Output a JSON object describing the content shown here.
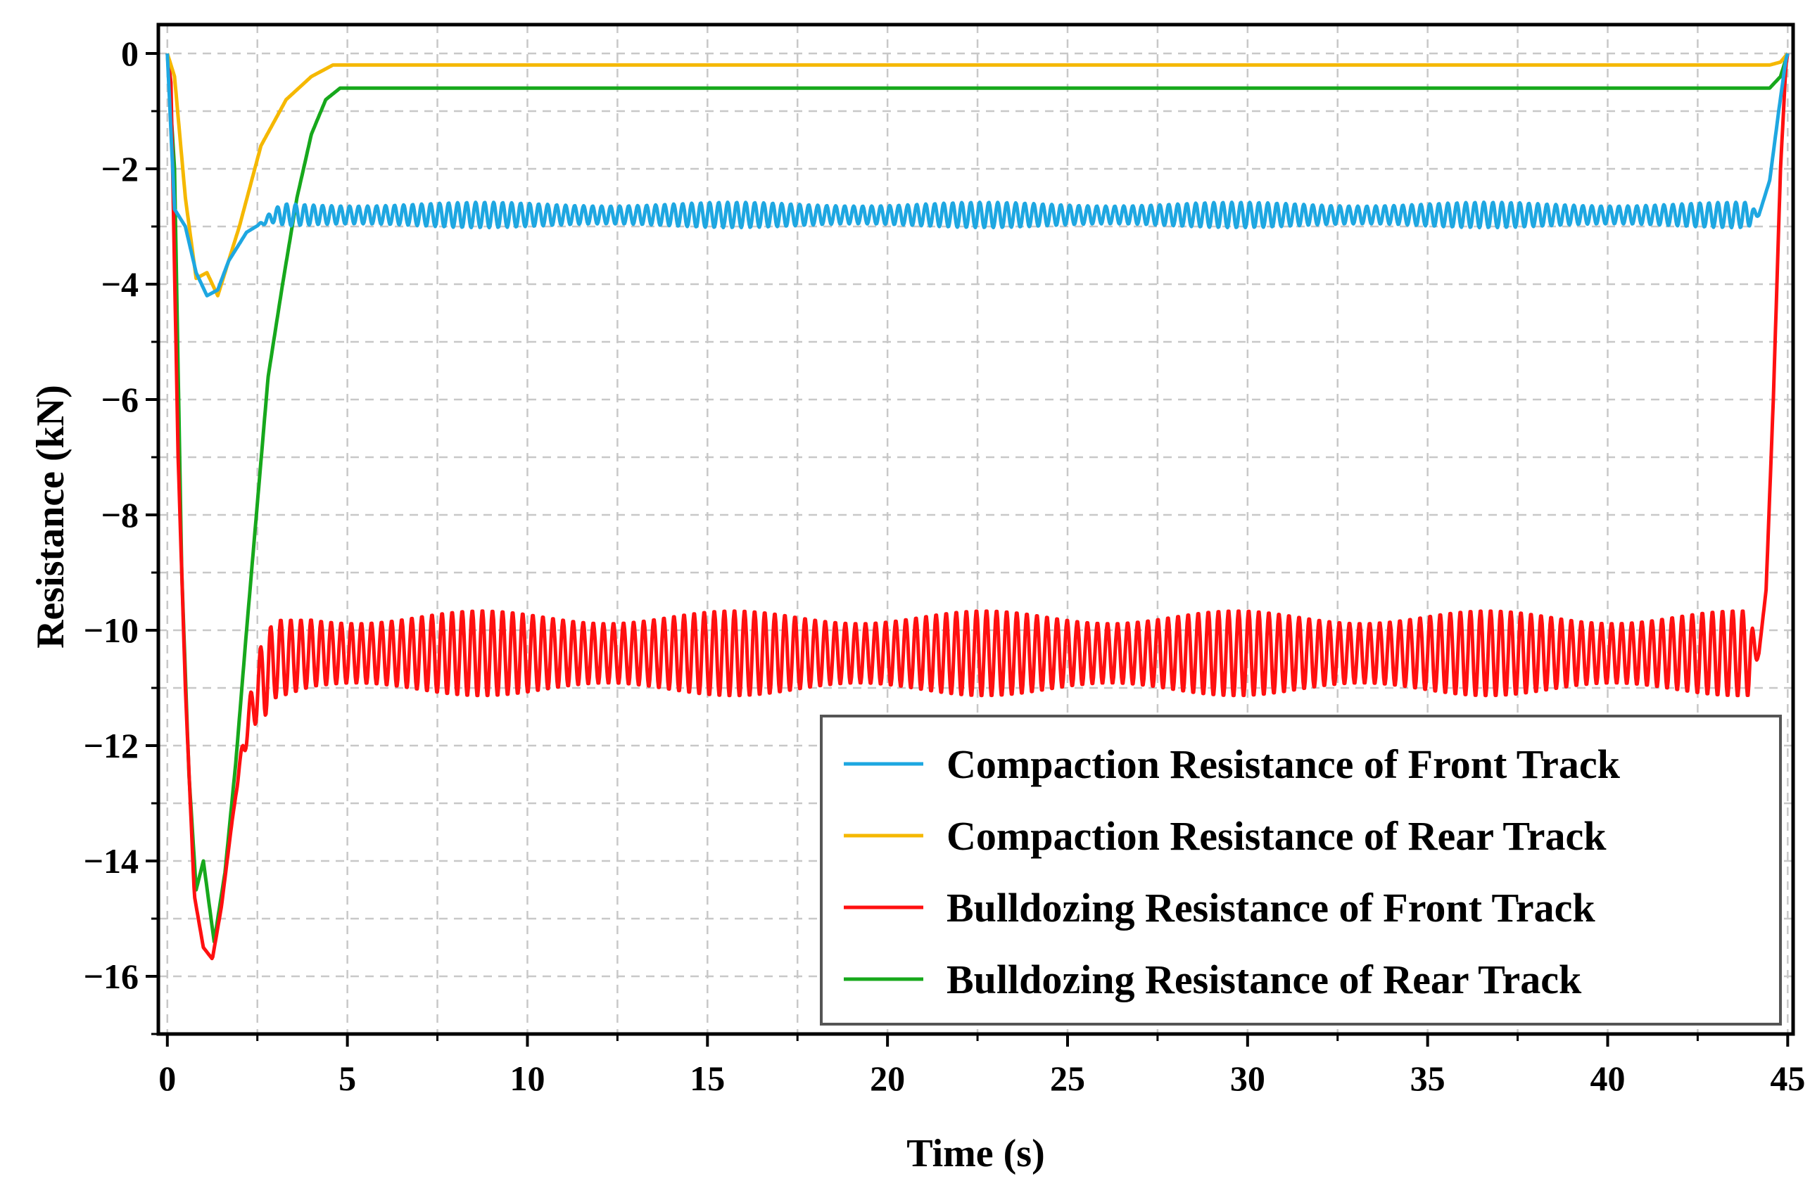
{
  "chart_data": {
    "type": "line",
    "title": "",
    "xlabel": "Time (s)",
    "ylabel": "Resistance (kN)",
    "xlim": [
      -0.25,
      45.15
    ],
    "ylim": [
      -17,
      0.5
    ],
    "xticks": [
      0,
      5,
      10,
      15,
      20,
      25,
      30,
      35,
      40,
      45
    ],
    "xtick_labels": [
      "0",
      "5",
      "10",
      "15",
      "20",
      "25",
      "30",
      "35",
      "40",
      "45"
    ],
    "yticks": [
      0,
      -2,
      -4,
      -6,
      -8,
      -10,
      -12,
      -14,
      -16
    ],
    "ytick_labels": [
      "0",
      "−2",
      "−4",
      "−6",
      "−8",
      "−10",
      "−12",
      "−14",
      "−16"
    ],
    "grid": true,
    "legend_position": "bottom-right",
    "series": [
      {
        "name": "Compaction Resistance of Front Track",
        "color": "#1ea7e1",
        "keypoints": [
          [
            0,
            0
          ],
          [
            0.2,
            -2.7
          ],
          [
            0.5,
            -3.0
          ],
          [
            0.8,
            -3.8
          ],
          [
            1.1,
            -4.2
          ],
          [
            1.4,
            -4.1
          ],
          [
            1.7,
            -3.6
          ],
          [
            2.2,
            -3.1
          ],
          [
            3.0,
            -2.8
          ],
          [
            44.2,
            -2.8
          ],
          [
            44.5,
            -2.2
          ],
          [
            44.75,
            -1.0
          ],
          [
            44.95,
            -0.1
          ],
          [
            45.0,
            0
          ]
        ],
        "osc_start": 2.5,
        "osc_end": 44.2,
        "osc_period": 0.25,
        "osc_amplitude": 0.22
      },
      {
        "name": "Compaction Resistance of Rear Track",
        "color": "#f5b800",
        "keypoints": [
          [
            0,
            0
          ],
          [
            0.2,
            -0.4
          ],
          [
            0.5,
            -2.5
          ],
          [
            0.8,
            -3.9
          ],
          [
            1.1,
            -3.8
          ],
          [
            1.4,
            -4.2
          ],
          [
            2.0,
            -3.0
          ],
          [
            2.6,
            -1.6
          ],
          [
            3.3,
            -0.8
          ],
          [
            4.0,
            -0.4
          ],
          [
            4.6,
            -0.2
          ],
          [
            44.5,
            -0.2
          ],
          [
            44.8,
            -0.15
          ],
          [
            45.0,
            0
          ]
        ]
      },
      {
        "name": "Bulldozing Resistance of Front Track",
        "color": "#ff1010",
        "keypoints": [
          [
            0,
            0
          ],
          [
            0.1,
            -0.5
          ],
          [
            0.3,
            -7.0
          ],
          [
            0.5,
            -11.0
          ],
          [
            0.75,
            -14.6
          ],
          [
            1.0,
            -15.5
          ],
          [
            1.25,
            -15.7
          ],
          [
            1.5,
            -14.8
          ],
          [
            1.8,
            -13.3
          ],
          [
            2.1,
            -12.0
          ],
          [
            2.5,
            -11.0
          ],
          [
            3.0,
            -10.5
          ],
          [
            4.0,
            -10.4
          ],
          [
            44.2,
            -10.4
          ],
          [
            44.4,
            -9.3
          ],
          [
            44.6,
            -6.0
          ],
          [
            44.8,
            -2.0
          ],
          [
            44.95,
            -0.2
          ],
          [
            45.0,
            0
          ]
        ],
        "osc_start": 1.9,
        "osc_end": 44.2,
        "osc_period": 0.28,
        "osc_amplitude": 0.75
      },
      {
        "name": "Bulldozing Resistance of Rear Track",
        "color": "#17a81c",
        "keypoints": [
          [
            0,
            0
          ],
          [
            0.2,
            -2.0
          ],
          [
            0.4,
            -9.0
          ],
          [
            0.6,
            -12.5
          ],
          [
            0.8,
            -14.5
          ],
          [
            1.0,
            -14.0
          ],
          [
            1.3,
            -15.4
          ],
          [
            1.6,
            -14.2
          ],
          [
            1.9,
            -12.3
          ],
          [
            2.2,
            -10.0
          ],
          [
            2.5,
            -7.8
          ],
          [
            2.8,
            -5.6
          ],
          [
            3.2,
            -4.0
          ],
          [
            3.6,
            -2.5
          ],
          [
            4.0,
            -1.4
          ],
          [
            4.4,
            -0.8
          ],
          [
            4.8,
            -0.6
          ],
          [
            44.5,
            -0.6
          ],
          [
            44.8,
            -0.4
          ],
          [
            45.0,
            0
          ]
        ]
      }
    ]
  }
}
